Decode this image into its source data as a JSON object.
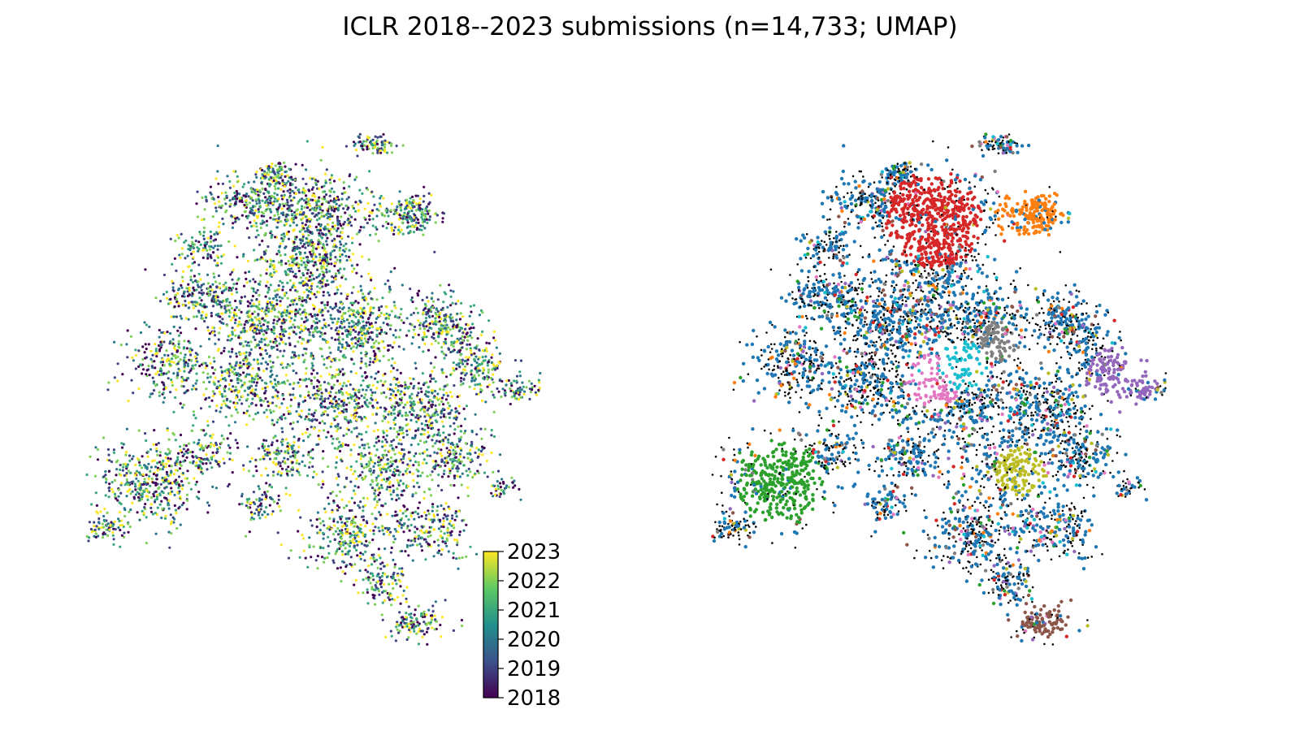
{
  "figure": {
    "title": "ICLR 2018--2023 submissions (n=14,733; UMAP)"
  },
  "colors": {
    "viridis": [
      "#440154",
      "#3b528b",
      "#21918c",
      "#5ec962",
      "#fde725"
    ],
    "clusters": [
      "#1f77b4",
      "#ff7f0e",
      "#2ca02c",
      "#d62728",
      "#9467bd",
      "#8c564b",
      "#e377c2",
      "#7f7f7f",
      "#bcbd22",
      "#17becf"
    ],
    "noise": "#000000"
  },
  "chart_data": [
    {
      "type": "scatter",
      "panel": "left",
      "title": "",
      "xlabel": "",
      "ylabel": "",
      "axes": "off",
      "grid": false,
      "color_encoding": "year",
      "colormap": "viridis",
      "colorbar": {
        "min": 2018,
        "max": 2023,
        "ticks": [
          "2018",
          "2019",
          "2020",
          "2021",
          "2022",
          "2023"
        ]
      },
      "n_points": 14733
    },
    {
      "type": "scatter",
      "panel": "right",
      "title": "",
      "xlabel": "",
      "ylabel": "",
      "axes": "off",
      "grid": false,
      "color_encoding": "cluster",
      "categorical_colors": [
        "#1f77b4",
        "#ff7f0e",
        "#2ca02c",
        "#d62728",
        "#9467bd",
        "#8c564b",
        "#e377c2",
        "#7f7f7f",
        "#bcbd22",
        "#17becf"
      ],
      "unclustered_color": "#000000",
      "n_points": 14733
    }
  ]
}
